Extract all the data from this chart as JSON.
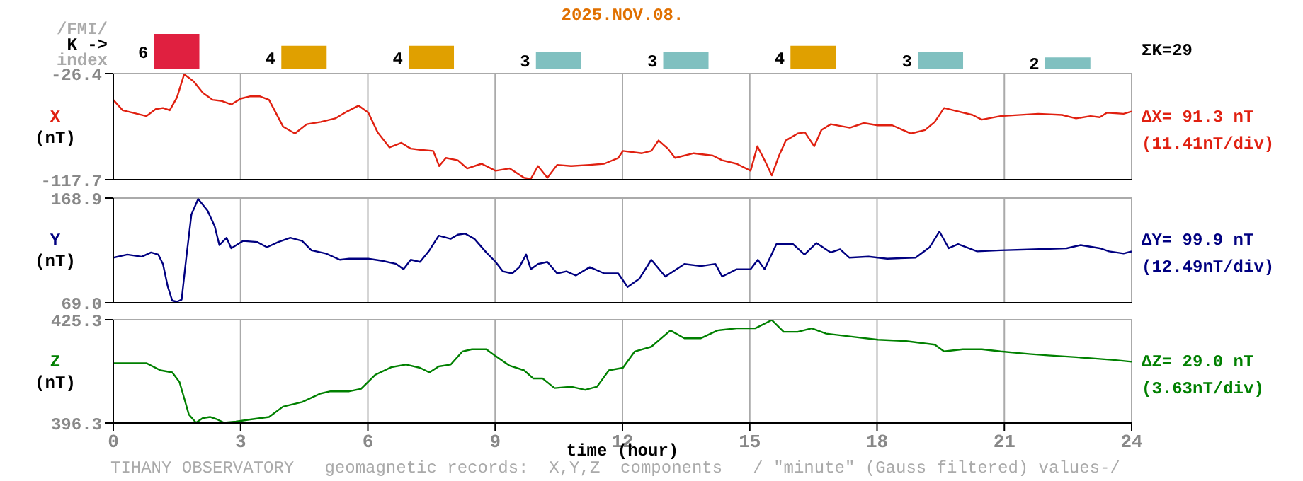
{
  "chart_data": [
    {
      "type": "bar",
      "title": "2025.NOV.08.",
      "ylabel": "/FMI/\nK ->\nindex",
      "categories": [
        null,
        null,
        null,
        null,
        null,
        null,
        null,
        null
      ],
      "values": [
        6,
        4,
        4,
        3,
        3,
        4,
        3,
        2
      ],
      "colors": [
        "#e02040",
        "#e0a000",
        "#e0a000",
        "#80c0c0",
        "#80c0c0",
        "#e0a000",
        "#80c0c0",
        "#80c0c0"
      ],
      "data_labels": true,
      "tick_labels": false,
      "annotations": [
        "ΣK=29"
      ]
    },
    {
      "type": "line",
      "ylabel": "X\n(nT)",
      "x": [
        0.0,
        0.22,
        0.56,
        0.78,
        1.0,
        1.17,
        1.33,
        1.5,
        1.67,
        1.89,
        2.11,
        2.34,
        2.56,
        2.78,
        3.0,
        3.23,
        3.45,
        3.67,
        4.0,
        4.28,
        4.56,
        4.89,
        5.23,
        5.51,
        5.78,
        6.01,
        6.23,
        6.51,
        6.79,
        7.01,
        7.23,
        7.54,
        7.68,
        7.84,
        8.12,
        8.34,
        8.68,
        9.01,
        9.34,
        9.68,
        9.84,
        10.01,
        10.23,
        10.46,
        10.79,
        11.23,
        11.57,
        11.9,
        12.01,
        12.46,
        12.68,
        12.85,
        13.07,
        13.24,
        13.68,
        14.13,
        14.35,
        14.69,
        15.02,
        15.18,
        15.35,
        15.52,
        15.69,
        15.85,
        16.13,
        16.3,
        16.52,
        16.69,
        16.91,
        17.36,
        17.69,
        18.02,
        18.36,
        18.8,
        19.13,
        19.36,
        19.58,
        19.8,
        20.25,
        20.47,
        20.91,
        21.8,
        22.36,
        22.69,
        23.03,
        23.25,
        23.42,
        23.81,
        24.0
      ],
      "series": [
        {
          "color": "#e02010",
          "values": [
            -49,
            -58,
            -61,
            -63,
            -57,
            -56,
            -58,
            -47,
            -27,
            -33,
            -43,
            -49,
            -50,
            -53,
            -48,
            -46,
            -46,
            -49,
            -72,
            -78,
            -70,
            -68,
            -65,
            -59,
            -54,
            -60,
            -77,
            -90,
            -86,
            -91,
            -92,
            -93,
            -106,
            -99,
            -101,
            -108,
            -104,
            -110,
            -108,
            -116,
            -117,
            -106,
            -116,
            -105,
            -106,
            -105,
            -104,
            -99,
            -93,
            -95,
            -93,
            -84,
            -91,
            -99,
            -95,
            -97,
            -101,
            -104,
            -110,
            -89,
            -101,
            -114,
            -97,
            -84,
            -78,
            -77,
            -89,
            -75,
            -70,
            -73,
            -69,
            -71,
            -71,
            -78,
            -75,
            -68,
            -56,
            -58,
            -62,
            -66,
            -63,
            -61,
            -62,
            -65,
            -63,
            -64,
            -60,
            -61,
            -59
          ]
        }
      ],
      "xlim": [
        0,
        24
      ],
      "xticks": [
        0,
        3,
        6,
        9,
        12,
        15,
        18,
        21,
        24
      ],
      "ylim": [
        -117.7,
        -26.4
      ],
      "yticks": [
        -26.4,
        -117.7
      ],
      "grid": true,
      "tick_labels": "y",
      "annotations": [
        "ΔX= 91.3 nT",
        "(11.41nT/div)"
      ]
    },
    {
      "type": "line",
      "ylabel": "Y\n(nT)",
      "x": [
        0.0,
        0.33,
        0.67,
        0.89,
        1.06,
        1.17,
        1.28,
        1.39,
        1.5,
        1.61,
        1.72,
        1.84,
        2.0,
        2.22,
        2.39,
        2.5,
        2.67,
        2.78,
        3.06,
        3.39,
        3.62,
        3.89,
        4.17,
        4.45,
        4.67,
        5.01,
        5.34,
        5.56,
        6.01,
        6.34,
        6.67,
        6.84,
        7.01,
        7.23,
        7.45,
        7.67,
        7.95,
        8.12,
        8.29,
        8.51,
        8.79,
        9.01,
        9.18,
        9.4,
        9.57,
        9.73,
        9.84,
        10.01,
        10.23,
        10.46,
        10.68,
        10.9,
        11.23,
        11.57,
        11.9,
        12.12,
        12.4,
        12.68,
        13.01,
        13.46,
        13.85,
        14.19,
        14.35,
        14.69,
        15.02,
        15.19,
        15.35,
        15.63,
        16.02,
        16.29,
        16.57,
        16.91,
        17.13,
        17.35,
        17.8,
        18.24,
        18.91,
        19.24,
        19.47,
        19.69,
        19.91,
        20.36,
        20.91,
        21.69,
        22.47,
        22.8,
        23.25,
        23.47,
        23.81,
        24.0
      ],
      "series": [
        {
          "color": "#000080",
          "values": [
            112,
            115,
            113,
            117,
            115,
            106,
            85,
            71,
            70,
            72,
            112,
            153,
            168,
            157,
            142,
            124,
            131,
            121,
            128,
            127,
            122,
            127,
            131,
            128,
            119,
            116,
            110,
            111,
            111,
            109,
            106,
            101,
            110,
            108,
            119,
            133,
            130,
            134,
            135,
            130,
            117,
            108,
            99,
            97,
            103,
            115,
            101,
            106,
            108,
            97,
            99,
            95,
            103,
            97,
            97,
            84,
            92,
            110,
            94,
            106,
            104,
            106,
            94,
            101,
            101,
            110,
            101,
            125,
            125,
            115,
            126,
            117,
            120,
            112,
            113,
            111,
            112,
            122,
            137,
            121,
            125,
            118,
            119,
            120,
            121,
            124,
            121,
            118,
            116,
            118
          ]
        }
      ],
      "xlim": [
        0,
        24
      ],
      "xticks": [
        0,
        3,
        6,
        9,
        12,
        15,
        18,
        21,
        24
      ],
      "ylim": [
        69.0,
        168.9
      ],
      "yticks": [
        168.9,
        {
          "value": 69.0,
          "label": "69.0"
        }
      ],
      "grid": true,
      "tick_labels": "y",
      "annotations": [
        "ΔY= 99.9 nT",
        "(12.49nT/div)"
      ]
    },
    {
      "type": "line",
      "ylabel": "Z\n(nT)",
      "xlabel": "time (hour)",
      "x": [
        0.0,
        0.78,
        1.11,
        1.39,
        1.56,
        1.67,
        1.78,
        1.95,
        2.11,
        2.28,
        2.45,
        2.61,
        2.89,
        3.23,
        3.67,
        4.0,
        4.45,
        4.89,
        5.12,
        5.56,
        5.84,
        6.17,
        6.56,
        6.9,
        7.23,
        7.45,
        7.67,
        7.95,
        8.23,
        8.45,
        8.79,
        9.01,
        9.34,
        9.68,
        9.9,
        10.12,
        10.4,
        10.79,
        11.12,
        11.4,
        11.68,
        12.01,
        12.29,
        12.68,
        13.13,
        13.46,
        13.85,
        14.24,
        14.69,
        15.13,
        15.52,
        15.8,
        16.13,
        16.46,
        16.8,
        17.36,
        18.02,
        18.69,
        19.36,
        19.58,
        20.02,
        20.47,
        20.91,
        21.58,
        22.03,
        22.69,
        23.14,
        23.58,
        24.0
      ],
      "series": [
        {
          "color": "#008000",
          "values": [
            413.1,
            413.1,
            411.1,
            410.5,
            407.8,
            403.3,
            398.7,
            396.4,
            397.7,
            398.0,
            397.3,
            396.4,
            396.7,
            397.3,
            398.0,
            400.9,
            402.2,
            404.6,
            405.2,
            405.2,
            405.9,
            409.8,
            412.0,
            412.7,
            411.8,
            410.5,
            412.2,
            412.7,
            416.4,
            417.0,
            417.0,
            415.1,
            412.4,
            411.1,
            408.8,
            408.8,
            406.1,
            406.5,
            405.6,
            406.5,
            411.1,
            411.8,
            416.4,
            417.7,
            422.3,
            420.1,
            420.1,
            422.3,
            422.9,
            422.9,
            425.2,
            421.9,
            421.9,
            422.9,
            421.4,
            420.6,
            419.7,
            419.3,
            418.3,
            416.4,
            417.0,
            417.0,
            416.4,
            415.7,
            415.3,
            414.8,
            414.4,
            414.0,
            413.5
          ]
        }
      ],
      "xlim": [
        0,
        24
      ],
      "xticks": [
        0,
        3,
        6,
        9,
        12,
        15,
        18,
        21,
        24
      ],
      "ylim": [
        396.3,
        425.3
      ],
      "yticks": [
        425.3,
        396.3
      ],
      "grid": true,
      "annotations": [
        "ΔZ= 29.0 nT",
        "(3.63nT/div)",
        "TIHANY OBSERVATORY   geomagnetic records:  X,Y,Z  components   / \"minute\" (Gauss filtered) values-/"
      ]
    }
  ]
}
